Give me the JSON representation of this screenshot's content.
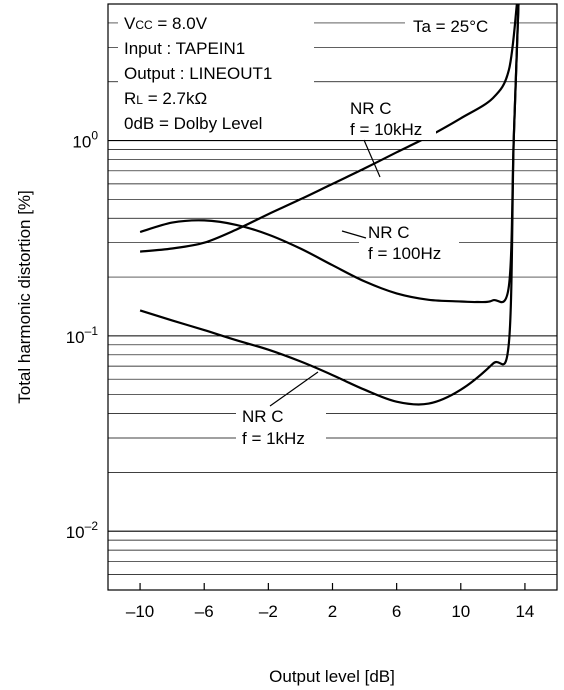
{
  "chart_data": {
    "type": "line",
    "xlabel": "Output level [dB]",
    "ylabel": "Total harmonic distortion [%]",
    "x_ticks": [
      -10,
      -6,
      -2,
      2,
      6,
      10,
      14
    ],
    "xlim": [
      -12,
      16
    ],
    "y_scale": "log",
    "ylim": [
      0.005,
      5
    ],
    "y_tick_labels": [
      {
        "value": 1,
        "base": "10",
        "exp": "0"
      },
      {
        "value": 0.1,
        "base": "10",
        "exp": "–1"
      },
      {
        "value": 0.01,
        "base": "10",
        "exp": "–2"
      }
    ],
    "grid": true,
    "conditions": {
      "vcc_prefix": "V",
      "vcc_sub": "CC",
      "vcc_value": " = 8.0V",
      "input": "Input : TAPEIN1",
      "output": "Output : LINEOUT1",
      "rl_prefix": "R",
      "rl_sub": "L",
      "rl_value": " = 2.7kΩ",
      "odb": "0dB = Dolby Level",
      "ta": "Ta = 25°C"
    },
    "series": [
      {
        "name_line1": "NR C",
        "name_line2": "f = 10kHz",
        "x": [
          -10,
          -8,
          -6,
          -4,
          -2,
          0,
          2,
          4,
          6,
          8,
          10,
          12,
          13,
          13.5
        ],
        "y": [
          0.27,
          0.28,
          0.3,
          0.35,
          0.42,
          0.5,
          0.6,
          0.72,
          0.87,
          1.05,
          1.3,
          1.65,
          2.3,
          5
        ]
      },
      {
        "name_line1": "NR C",
        "name_line2": "f = 100Hz",
        "x": [
          -10,
          -8,
          -6,
          -4,
          -2,
          0,
          2,
          4,
          6,
          8,
          10,
          11,
          12,
          13,
          13.3,
          13.6
        ],
        "y": [
          0.34,
          0.38,
          0.39,
          0.37,
          0.33,
          0.28,
          0.23,
          0.19,
          0.165,
          0.153,
          0.15,
          0.149,
          0.152,
          0.18,
          1,
          5
        ]
      },
      {
        "name_line1": "NR C",
        "name_line2": "f = 1kHz",
        "x": [
          -10,
          -8,
          -6,
          -4,
          -2,
          0,
          2,
          4,
          6,
          8,
          10,
          12,
          13,
          13.3,
          13.6
        ],
        "y": [
          0.135,
          0.12,
          0.107,
          0.095,
          0.085,
          0.074,
          0.063,
          0.053,
          0.046,
          0.045,
          0.053,
          0.072,
          0.092,
          1,
          5
        ]
      }
    ]
  }
}
